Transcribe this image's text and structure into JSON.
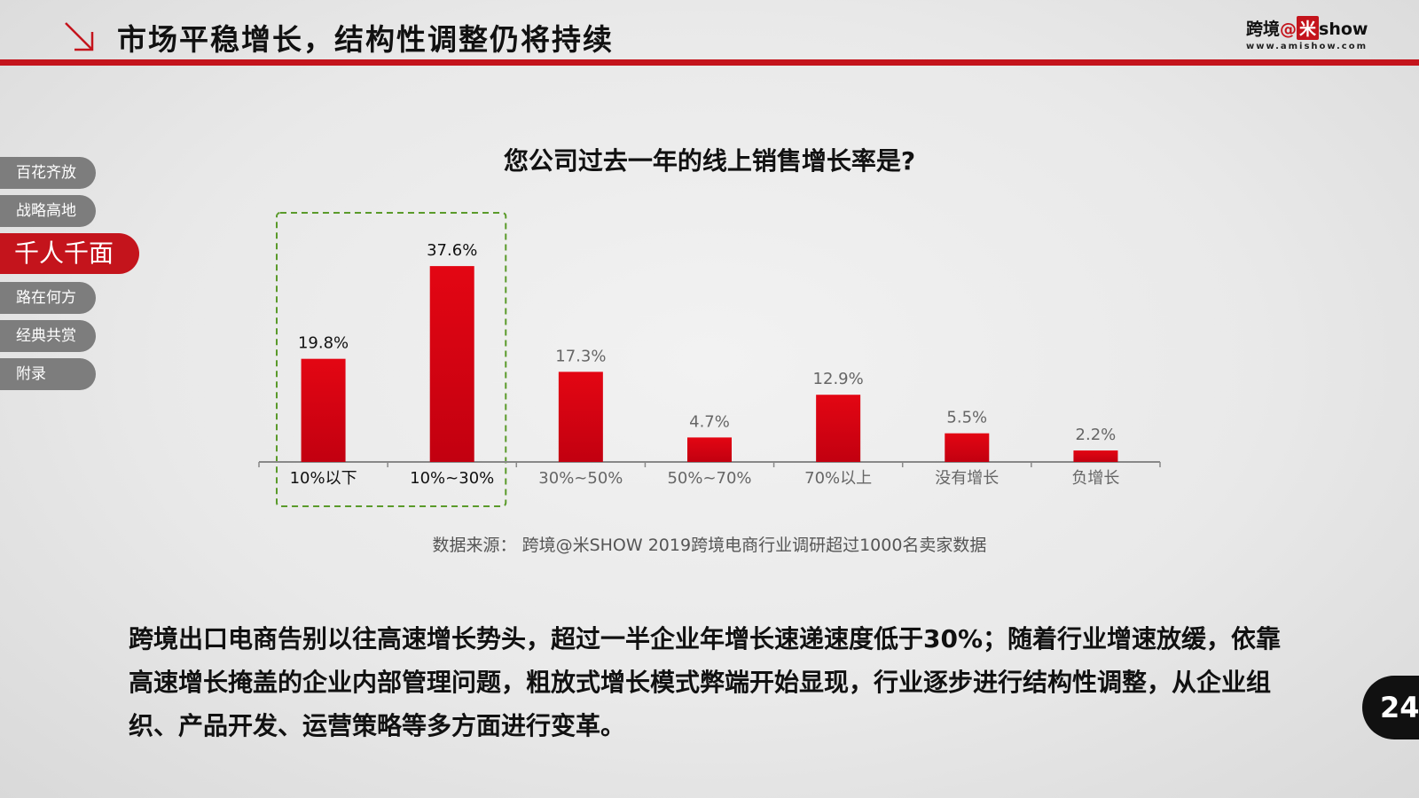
{
  "header": {
    "title": "市场平稳增长，结构性调整仍将持续",
    "brand_cn": "跨境",
    "brand_at": "@",
    "brand_mi": "米",
    "brand_show": "show",
    "brand_url": "www.amishow.com"
  },
  "side_nav": {
    "items": [
      {
        "label": "百花齐放",
        "active": false
      },
      {
        "label": "战略高地",
        "active": false
      },
      {
        "label": "千人千面",
        "active": true
      },
      {
        "label": "路在何方",
        "active": false
      },
      {
        "label": "经典共赏",
        "active": false
      },
      {
        "label": "附录",
        "active": false
      }
    ]
  },
  "chart_data": {
    "type": "bar",
    "title": "您公司过去一年的线上销售增长率是?",
    "categories": [
      "10%以下",
      "10%~30%",
      "30%~50%",
      "50%~70%",
      "70%以上",
      "没有增长",
      "负增长"
    ],
    "values": [
      19.8,
      37.6,
      17.3,
      4.7,
      12.9,
      5.5,
      2.2
    ],
    "value_labels": [
      "19.8%",
      "37.6%",
      "17.3%",
      "4.7%",
      "12.9%",
      "5.5%",
      "2.2%"
    ],
    "highlighted_categories": [
      "10%以下",
      "10%~30%"
    ],
    "ylim": [
      0,
      40
    ],
    "bar_color": "#e30613",
    "highlight_box_color": "#5a9a2a",
    "grid": false
  },
  "source_note": "数据来源：  跨境@米SHOW 2019跨境电商行业调研超过1000名卖家数据",
  "summary": "跨境出口电商告别以往高速增长势头，超过一半企业年增长速递速度低于30%；随着行业增速放缓，依靠高速增长掩盖的企业内部管理问题，粗放式增长模式弊端开始显现，行业逐步进行结构性调整，从企业组织、产品开发、运营策略等多方面进行变革。",
  "page_number": "24",
  "colors": {
    "accent_red": "#c4141c",
    "nav_gray": "#7d7d7d"
  }
}
